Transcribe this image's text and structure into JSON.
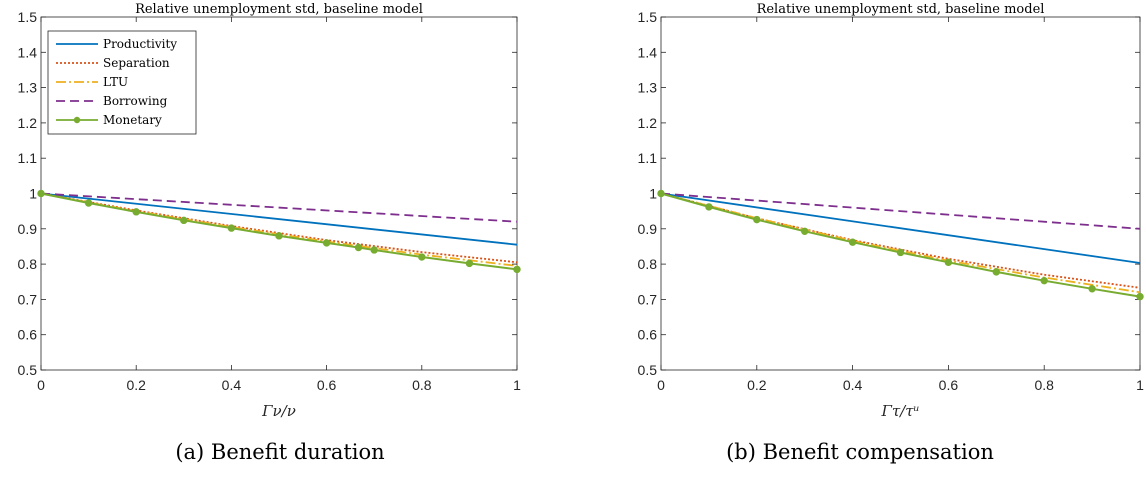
{
  "figure": {
    "captions": [
      "(a) Benefit duration",
      "(b) Benefit compensation"
    ]
  },
  "chart_data": [
    {
      "type": "line",
      "title": "Relative unemployment std, baseline model",
      "xlabel": "Γν/ν",
      "ylabel": "",
      "xlim": [
        0,
        1
      ],
      "ylim": [
        0.5,
        1.5
      ],
      "xticks": [
        0,
        0.2,
        0.4,
        0.6,
        0.8,
        1
      ],
      "xtick_labels": [
        "0",
        "0.2",
        "0.4",
        "0.6",
        "0.8",
        "1"
      ],
      "yticks": [
        0.5,
        0.6,
        0.7,
        0.8,
        0.9,
        1,
        1.1,
        1.2,
        1.3,
        1.4,
        1.5
      ],
      "ytick_labels": [
        "0.5",
        "0.6",
        "0.7",
        "0.8",
        "0.9",
        "1",
        "1.1",
        "1.2",
        "1.3",
        "1.4",
        "1.5"
      ],
      "grid": false,
      "legend_position": "top-left",
      "series": [
        {
          "name": "Productivity",
          "color": "#0072BD",
          "style": "solid",
          "x": [
            0,
            1
          ],
          "y": [
            1,
            0.855
          ]
        },
        {
          "name": "Separation",
          "color": "#D95319",
          "style": "dotted",
          "x": [
            0,
            0.2,
            0.4,
            0.6,
            0.8,
            1
          ],
          "y": [
            1,
            0.952,
            0.908,
            0.868,
            0.834,
            0.805
          ]
        },
        {
          "name": "LTU",
          "color": "#EDB120",
          "style": "dashdot",
          "x": [
            0,
            0.2,
            0.4,
            0.6,
            0.8,
            1
          ],
          "y": [
            1,
            0.95,
            0.905,
            0.864,
            0.827,
            0.795
          ]
        },
        {
          "name": "Borrowing",
          "color": "#7E2F8E",
          "style": "dashed",
          "x": [
            0,
            1
          ],
          "y": [
            1,
            0.92
          ]
        },
        {
          "name": "Monetary",
          "color": "#77AC30",
          "style": "solid-marker",
          "x": [
            0,
            0.1,
            0.2,
            0.3,
            0.4,
            0.5,
            0.6,
            0.667,
            0.7,
            0.8,
            0.9,
            1
          ],
          "y": [
            1,
            0.973,
            0.948,
            0.924,
            0.902,
            0.88,
            0.86,
            0.847,
            0.84,
            0.82,
            0.802,
            0.785
          ]
        }
      ]
    },
    {
      "type": "line",
      "title": "Relative unemployment std, baseline model",
      "xlabel": "Γτ/τᵘ",
      "ylabel": "",
      "xlim": [
        0,
        1
      ],
      "ylim": [
        0.5,
        1.5
      ],
      "xticks": [
        0,
        0.2,
        0.4,
        0.6,
        0.8,
        1
      ],
      "xtick_labels": [
        "0",
        "0.2",
        "0.4",
        "0.6",
        "0.8",
        "1"
      ],
      "yticks": [
        0.5,
        0.6,
        0.7,
        0.8,
        0.9,
        1,
        1.1,
        1.2,
        1.3,
        1.4,
        1.5
      ],
      "ytick_labels": [
        "0.5",
        "0.6",
        "0.7",
        "0.8",
        "0.9",
        "1",
        "1.1",
        "1.2",
        "1.3",
        "1.4",
        "1.5"
      ],
      "grid": false,
      "legend_position": "none",
      "series": [
        {
          "name": "Productivity",
          "color": "#0072BD",
          "style": "solid",
          "x": [
            0,
            1
          ],
          "y": [
            1,
            0.803
          ]
        },
        {
          "name": "Separation",
          "color": "#D95319",
          "style": "dotted",
          "x": [
            0,
            0.2,
            0.4,
            0.6,
            0.8,
            1
          ],
          "y": [
            1,
            0.93,
            0.868,
            0.815,
            0.77,
            0.733
          ]
        },
        {
          "name": "LTU",
          "color": "#EDB120",
          "style": "dashdot",
          "x": [
            0,
            0.2,
            0.4,
            0.6,
            0.8,
            1
          ],
          "y": [
            1,
            0.93,
            0.866,
            0.81,
            0.762,
            0.72
          ]
        },
        {
          "name": "Borrowing",
          "color": "#7E2F8E",
          "style": "dashed",
          "x": [
            0,
            1
          ],
          "y": [
            1,
            0.9
          ]
        },
        {
          "name": "Monetary",
          "color": "#77AC30",
          "style": "solid-marker",
          "x": [
            0,
            0.1,
            0.2,
            0.3,
            0.4,
            0.5,
            0.6,
            0.7,
            0.8,
            0.9,
            1
          ],
          "y": [
            1,
            0.962,
            0.926,
            0.893,
            0.862,
            0.833,
            0.805,
            0.778,
            0.753,
            0.73,
            0.708
          ]
        }
      ]
    }
  ]
}
